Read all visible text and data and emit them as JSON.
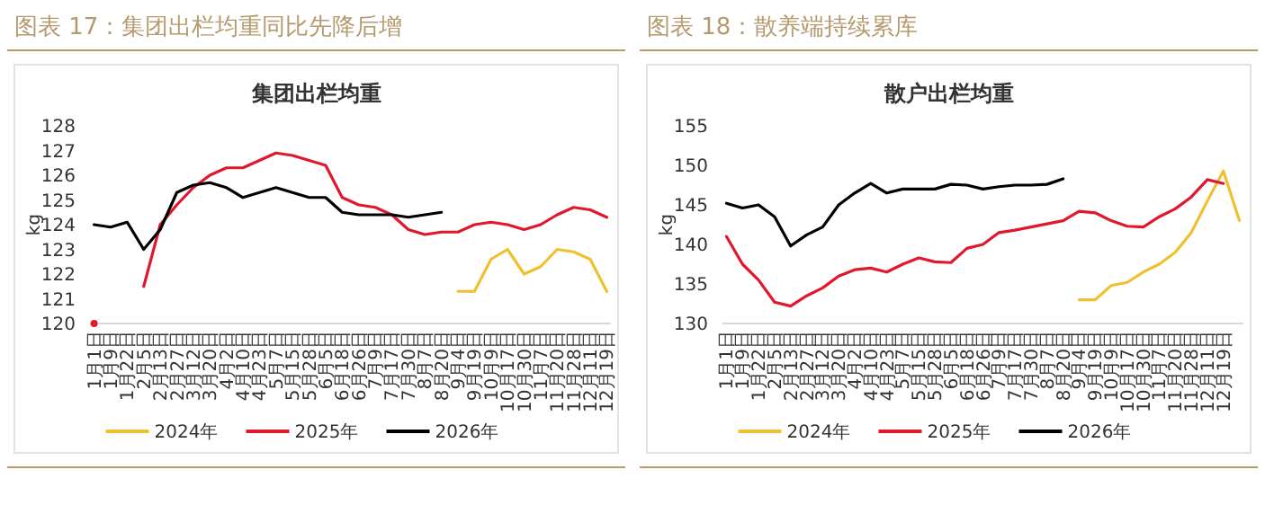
{
  "chart_data": [
    {
      "type": "line",
      "title": "图表 17：集团出栏均重同比先降后增",
      "subtitle": "集团出栏均重",
      "ylabel": "kg",
      "categories": [
        "1月1日",
        "1月9日",
        "1月22日",
        "2月5日",
        "2月13日",
        "2月27日",
        "3月12日",
        "3月20日",
        "4月2日",
        "4月10日",
        "4月23日",
        "5月7日",
        "5月15日",
        "5月28日",
        "6月5日",
        "6月18日",
        "6月26日",
        "7月9日",
        "7月17日",
        "7月30日",
        "8月7日",
        "8月20日",
        "9月4日",
        "9月19日",
        "10月9日",
        "10月17日",
        "10月30日",
        "11月7日",
        "11月20日",
        "11月28日",
        "12月11日",
        "12月19日"
      ],
      "ylim": [
        120,
        128
      ],
      "yticks": [
        120,
        121,
        122,
        123,
        124,
        125,
        126,
        127,
        128
      ],
      "grid": false,
      "legend": "bottom",
      "series": [
        {
          "name": "2024年",
          "color": "#f0c030",
          "values": [
            null,
            null,
            null,
            null,
            null,
            null,
            null,
            null,
            null,
            null,
            null,
            null,
            null,
            null,
            null,
            null,
            null,
            null,
            null,
            null,
            null,
            null,
            121.3,
            121.3,
            122.6,
            123.0,
            122.0,
            122.3,
            123.0,
            122.9,
            122.6,
            121.3
          ]
        },
        {
          "name": "2025年",
          "color": "#e0182d",
          "values": [
            120.0,
            null,
            null,
            121.5,
            124.0,
            124.8,
            125.5,
            126.0,
            126.3,
            126.3,
            126.6,
            126.9,
            126.8,
            126.6,
            126.4,
            125.1,
            124.8,
            124.7,
            124.4,
            123.8,
            123.6,
            123.7,
            123.7,
            124.0,
            124.1,
            124.0,
            123.8,
            124.0,
            124.4,
            124.7,
            124.6,
            124.3
          ]
        },
        {
          "name": "2026年",
          "color": "#000000",
          "values": [
            124.0,
            123.9,
            124.1,
            123.0,
            123.8,
            125.3,
            125.6,
            125.7,
            125.5,
            125.1,
            125.3,
            125.5,
            125.3,
            125.1,
            125.1,
            124.5,
            124.4,
            124.4,
            124.4,
            124.3,
            124.4,
            124.5,
            null,
            null,
            null,
            null,
            null,
            null,
            null,
            null,
            null,
            null
          ]
        }
      ]
    },
    {
      "type": "line",
      "title": "图表 18：散养端持续累库",
      "subtitle": "散户出栏均重",
      "ylabel": "kg",
      "categories": [
        "1月1日",
        "1月9日",
        "1月22日",
        "2月5日",
        "2月13日",
        "2月27日",
        "3月12日",
        "3月20日",
        "4月2日",
        "4月10日",
        "4月23日",
        "5月7日",
        "5月15日",
        "5月28日",
        "6月5日",
        "6月18日",
        "6月26日",
        "7月9日",
        "7月17日",
        "7月30日",
        "8月7日",
        "8月20日",
        "9月4日",
        "9月19日",
        "10月9日",
        "10月17日",
        "10月30日",
        "11月7日",
        "11月20日",
        "11月28日",
        "12月11日",
        "12月19日",
        null
      ],
      "ylim": [
        130,
        155
      ],
      "yticks": [
        130,
        135,
        140,
        145,
        150,
        155
      ],
      "grid": false,
      "legend": "bottom",
      "series": [
        {
          "name": "2024年",
          "color": "#f0c030",
          "values": [
            null,
            null,
            null,
            null,
            null,
            null,
            null,
            null,
            null,
            null,
            null,
            null,
            null,
            null,
            null,
            null,
            null,
            null,
            null,
            null,
            null,
            null,
            133.0,
            133.0,
            134.8,
            135.2,
            136.5,
            137.5,
            139.0,
            141.5,
            145.5,
            149.3,
            143.0
          ]
        },
        {
          "name": "2025年",
          "color": "#e0182d",
          "values": [
            141.0,
            137.5,
            135.5,
            132.7,
            132.2,
            133.5,
            134.5,
            136.0,
            136.8,
            137.0,
            136.5,
            137.5,
            138.3,
            137.8,
            137.7,
            139.5,
            140.0,
            141.5,
            141.8,
            142.2,
            142.6,
            143.0,
            144.2,
            144.0,
            143.0,
            142.3,
            142.2,
            143.5,
            144.5,
            146.0,
            148.2,
            147.7,
            null
          ]
        },
        {
          "name": "2026年",
          "color": "#000000",
          "values": [
            145.2,
            144.6,
            145.0,
            143.5,
            139.8,
            141.2,
            142.2,
            145.0,
            146.5,
            147.7,
            146.5,
            147.0,
            147.0,
            147.0,
            147.6,
            147.5,
            147.0,
            147.3,
            147.5,
            147.5,
            147.6,
            148.3,
            null,
            null,
            null,
            null,
            null,
            null,
            null,
            null,
            null,
            null,
            null
          ]
        }
      ]
    }
  ]
}
